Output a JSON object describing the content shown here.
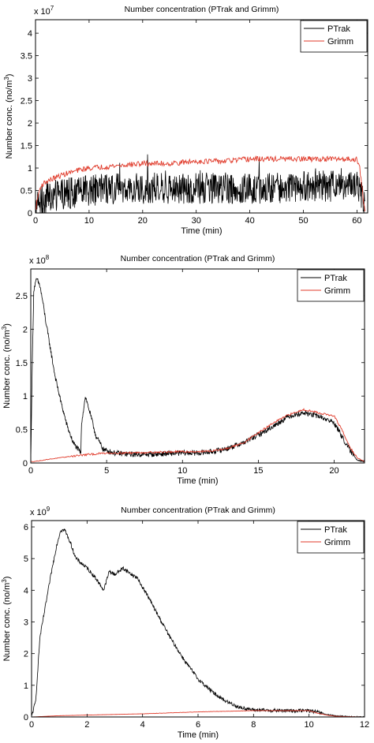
{
  "chart_data": [
    {
      "type": "line",
      "title": "Number concentration (PTrak and  Grimm)",
      "xlabel": "Time (min)",
      "ylabel": "Number conc. (no/m",
      "ylabel_sup": "3",
      "ylabel_close": ")",
      "exponent_base": "x 10",
      "exponent_power": "7",
      "xlim": [
        0,
        62
      ],
      "ylim": [
        0,
        4.3
      ],
      "xticks": [
        0,
        10,
        20,
        30,
        40,
        50,
        60
      ],
      "yticks": [
        0,
        0.5,
        1,
        1.5,
        2,
        2.5,
        3,
        3.5,
        4
      ],
      "ytick_labels": [
        "0",
        "0.5",
        "1",
        "1.5",
        "2",
        "2.5",
        "3",
        "3.5",
        "4"
      ],
      "grid": false,
      "legend": "top-right",
      "series": [
        {
          "name": "PTrak",
          "color": "#000000",
          "x": [
            0,
            0.5,
            1,
            2,
            3,
            4,
            6,
            8,
            10,
            15,
            20,
            25,
            30,
            35,
            40,
            45,
            50,
            55,
            58,
            59,
            60,
            60.5,
            61,
            61.5
          ],
          "values": [
            0.05,
            0.2,
            0.25,
            0.3,
            0.35,
            0.4,
            0.45,
            0.45,
            0.5,
            0.55,
            0.55,
            0.55,
            0.55,
            0.55,
            0.55,
            0.55,
            0.6,
            0.6,
            0.6,
            0.65,
            0.6,
            0.55,
            0.3,
            0.05
          ],
          "noise": 0.35
        },
        {
          "name": "Grimm",
          "color": "#e03a2a",
          "x": [
            0,
            0.5,
            1,
            2,
            3,
            5,
            8,
            10,
            15,
            20,
            25,
            30,
            35,
            40,
            45,
            50,
            55,
            58,
            60,
            60.5,
            61,
            61.5
          ],
          "values": [
            0.05,
            0.4,
            0.6,
            0.7,
            0.75,
            0.85,
            0.95,
            1.0,
            1.05,
            1.1,
            1.1,
            1.15,
            1.15,
            1.2,
            1.2,
            1.2,
            1.2,
            1.2,
            1.2,
            1.0,
            0.5,
            0.05
          ],
          "noise": 0.06
        }
      ]
    },
    {
      "type": "line",
      "title": "Number concentration (PTrak and Grimm)",
      "xlabel": "Time (min)",
      "ylabel": "Number conc. (no/m",
      "ylabel_sup": "3",
      "ylabel_close": ")",
      "exponent_base": "x 10",
      "exponent_power": "8",
      "xlim": [
        0,
        22
      ],
      "ylim": [
        0,
        2.9
      ],
      "xticks": [
        0,
        5,
        10,
        15,
        20
      ],
      "yticks": [
        0,
        0.5,
        1,
        1.5,
        2,
        2.5
      ],
      "ytick_labels": [
        "0",
        "0.5",
        "1",
        "1.5",
        "2",
        "2.5"
      ],
      "grid": false,
      "legend": "top-right",
      "series": [
        {
          "name": "PTrak",
          "color": "#000000",
          "x": [
            0,
            0.1,
            0.2,
            0.4,
            0.6,
            0.8,
            1.0,
            1.3,
            1.6,
            2.0,
            2.4,
            2.8,
            3.2,
            3.3,
            3.35,
            3.6,
            3.9,
            4.3,
            4.8,
            5.5,
            6.5,
            8,
            10,
            11,
            12,
            13,
            14,
            15,
            16,
            17,
            18,
            19,
            20,
            20.5,
            21,
            21.5,
            22
          ],
          "values": [
            0.05,
            1.5,
            2.6,
            2.75,
            2.65,
            2.4,
            2.1,
            1.7,
            1.3,
            0.9,
            0.55,
            0.3,
            0.18,
            0.15,
            0.6,
            1.0,
            0.75,
            0.4,
            0.2,
            0.15,
            0.13,
            0.13,
            0.15,
            0.15,
            0.17,
            0.22,
            0.3,
            0.42,
            0.55,
            0.7,
            0.75,
            0.7,
            0.6,
            0.4,
            0.2,
            0.05,
            0.02
          ],
          "noise": 0.04
        },
        {
          "name": "Grimm",
          "color": "#e03a2a",
          "x": [
            0,
            0.5,
            1,
            2,
            3,
            4,
            5,
            6,
            8,
            10,
            11,
            12,
            13,
            14,
            15,
            16,
            17,
            18,
            19,
            20,
            20.5,
            21,
            21.5,
            22
          ],
          "values": [
            0.02,
            0.03,
            0.05,
            0.08,
            0.11,
            0.13,
            0.15,
            0.15,
            0.16,
            0.17,
            0.17,
            0.18,
            0.22,
            0.3,
            0.45,
            0.6,
            0.72,
            0.8,
            0.75,
            0.7,
            0.5,
            0.25,
            0.08,
            0.02
          ],
          "noise": 0.015
        }
      ]
    },
    {
      "type": "line",
      "title": "Number concentration (PTrak and Grimm)",
      "xlabel": "Time (min)",
      "ylabel": "Number conc. (no/m",
      "ylabel_sup": "3",
      "ylabel_close": ")",
      "exponent_base": "x 10",
      "exponent_power": "9",
      "xlim": [
        0,
        12
      ],
      "ylim": [
        0,
        6.2
      ],
      "xticks": [
        0,
        2,
        4,
        6,
        8,
        10,
        12
      ],
      "yticks": [
        0,
        1,
        2,
        3,
        4,
        5,
        6
      ],
      "ytick_labels": [
        "0",
        "1",
        "2",
        "3",
        "4",
        "5",
        "6"
      ],
      "grid": false,
      "legend": "top-right",
      "series": [
        {
          "name": "PTrak",
          "color": "#000000",
          "x": [
            0,
            0.15,
            0.3,
            0.5,
            0.7,
            0.9,
            1.05,
            1.2,
            1.4,
            1.6,
            2.0,
            2.3,
            2.6,
            2.8,
            3.0,
            3.3,
            3.6,
            3.8,
            4.0,
            4.2,
            4.5,
            5.0,
            5.5,
            6.0,
            6.5,
            7.0,
            7.5,
            8.0,
            9.0,
            10.0,
            10.3,
            10.6,
            11.0,
            11.5,
            12.0
          ],
          "values": [
            0.02,
            0.5,
            2.5,
            3.5,
            4.5,
            5.4,
            5.9,
            5.9,
            5.5,
            5.0,
            4.7,
            4.4,
            4.0,
            4.6,
            4.5,
            4.7,
            4.5,
            4.4,
            4.1,
            3.8,
            3.3,
            2.5,
            1.8,
            1.2,
            0.8,
            0.5,
            0.3,
            0.22,
            0.2,
            0.2,
            0.15,
            0.08,
            0.03,
            0.01,
            0.0
          ],
          "noise": 0.06
        },
        {
          "name": "Grimm",
          "color": "#e03a2a",
          "x": [
            0,
            0.5,
            1,
            2,
            4,
            6,
            8,
            10,
            10.3,
            10.7,
            11,
            12
          ],
          "values": [
            0.0,
            0.02,
            0.04,
            0.06,
            0.1,
            0.16,
            0.2,
            0.2,
            0.12,
            0.05,
            0.02,
            0.0
          ],
          "noise": 0.005
        }
      ]
    }
  ]
}
